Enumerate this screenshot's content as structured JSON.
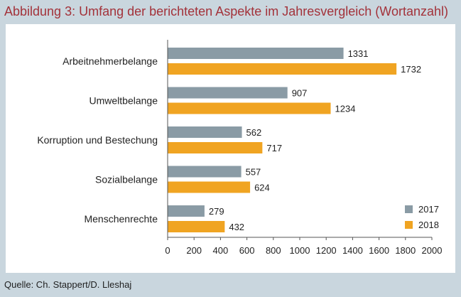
{
  "title": "Abbildung 3: Umfang der berichteten Aspekte im Jahresvergleich (Wortanzahl)",
  "source": "Quelle: Ch. Stappert/D. Lleshaj",
  "colors": {
    "series_2017": "#8a9ba5",
    "series_2018": "#f0a422",
    "background": "#c9d6de",
    "title": "#a3323a"
  },
  "chart_data": {
    "type": "bar",
    "orientation": "horizontal",
    "categories": [
      "Arbeitnehmerbelange",
      "Umweltbelange",
      "Korruption und Bestechung",
      "Sozialbelange",
      "Menschenrechte"
    ],
    "series": [
      {
        "name": "2017",
        "values": [
          1331,
          907,
          562,
          557,
          279
        ]
      },
      {
        "name": "2018",
        "values": [
          1732,
          1234,
          717,
          624,
          432
        ]
      }
    ],
    "xlim": [
      0,
      2000
    ],
    "xticks": [
      "0",
      "200",
      "400",
      "600",
      "800",
      "1000",
      "1200",
      "1400",
      "1600",
      "1800",
      "2000"
    ],
    "xlabel": "",
    "ylabel": "",
    "grid": false,
    "legend_position": "bottom-right"
  }
}
